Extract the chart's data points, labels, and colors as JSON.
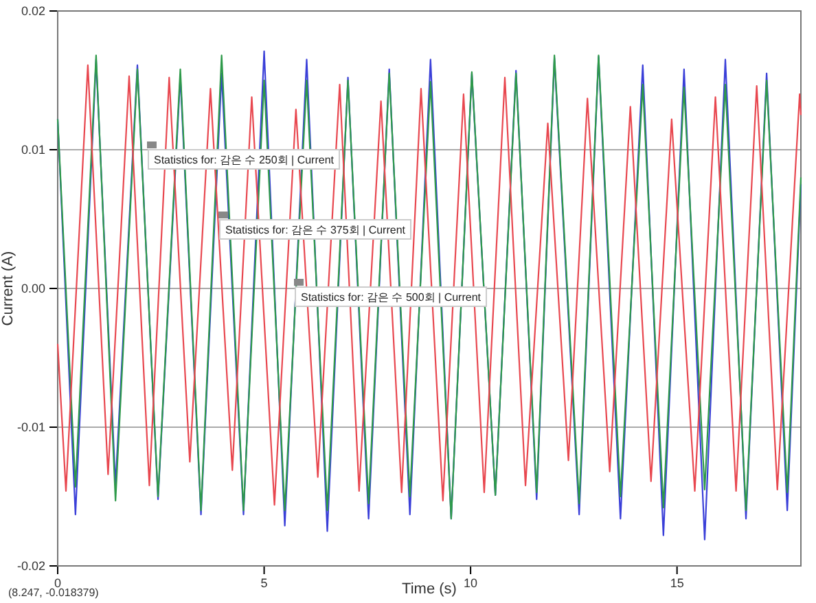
{
  "chart_data": {
    "type": "line",
    "xlabel": "Time (s)",
    "ylabel": "Current (A)",
    "xlim": [
      0,
      18
    ],
    "ylim": [
      -0.02,
      0.02
    ],
    "xticks": [
      0,
      5,
      10,
      15
    ],
    "yticks": [
      -0.02,
      -0.01,
      {
        "value": 0,
        "label": "0.00"
      },
      0.01,
      0.02
    ],
    "grid": "y",
    "marker": "none",
    "line_style": "solid",
    "annotations": [
      "Statistics for: 감은 수 250회 | Current",
      "Statistics for: 감은 수 375회 | Current",
      "Statistics for: 감은 수 500회 | Current",
      "(8.247, -0.018379)"
    ],
    "series": [
      {
        "color": "#e8474f",
        "x": [
          0,
          0.2,
          0.73,
          1.22,
          1.73,
          2.22,
          2.7,
          3.2,
          3.7,
          4.23,
          4.7,
          5.25,
          5.77,
          6.3,
          6.83,
          7.3,
          7.83,
          8.33,
          8.8,
          9.33,
          9.83,
          10.33,
          10.83,
          11.33,
          11.87,
          12.37,
          12.83,
          13.37,
          13.87,
          14.37,
          14.87,
          15.43,
          15.93,
          16.43,
          16.93,
          17.43,
          17.97,
          18
        ],
        "values": [
          -0.004,
          -0.0146,
          0.0161,
          -0.0134,
          0.0153,
          -0.0142,
          0.0152,
          -0.0125,
          0.0144,
          -0.0131,
          0.0138,
          -0.0156,
          0.0129,
          -0.0136,
          0.0147,
          -0.0146,
          0.0135,
          -0.0147,
          0.0144,
          -0.0153,
          0.014,
          -0.0147,
          0.0152,
          -0.0142,
          0.0119,
          -0.0124,
          0.0137,
          -0.0132,
          0.0131,
          -0.0139,
          0.0122,
          -0.0146,
          0.0138,
          -0.0146,
          0.0146,
          -0.0145,
          0.014,
          0.0125
        ]
      },
      {
        "color": "#2e9a4a",
        "x": [
          0,
          0.43,
          0.93,
          1.4,
          1.93,
          2.43,
          2.97,
          3.47,
          3.97,
          4.5,
          5.0,
          5.5,
          6.03,
          6.53,
          7.03,
          7.53,
          8.03,
          8.53,
          9.03,
          9.53,
          10.03,
          10.6,
          11.1,
          11.6,
          12.03,
          12.63,
          13.1,
          13.63,
          14.17,
          14.67,
          15.17,
          15.67,
          16.17,
          16.67,
          17.17,
          17.67,
          18
        ],
        "values": [
          0.0122,
          -0.0143,
          0.0168,
          -0.0153,
          0.0158,
          -0.015,
          0.0158,
          -0.016,
          0.0168,
          -0.016,
          0.015,
          -0.016,
          0.015,
          -0.016,
          0.015,
          -0.0155,
          0.0155,
          -0.015,
          0.0149,
          -0.0166,
          0.0156,
          -0.0149,
          0.0155,
          -0.0147,
          0.0168,
          -0.0155,
          0.0168,
          -0.015,
          0.0147,
          -0.0158,
          0.0145,
          -0.0145,
          0.0147,
          -0.016,
          0.015,
          -0.0147,
          0.008
        ]
      },
      {
        "color": "#3a3fd8",
        "x": [
          0,
          0.43,
          0.93,
          1.4,
          1.93,
          2.43,
          2.97,
          3.47,
          3.97,
          4.5,
          5.0,
          5.5,
          6.03,
          6.53,
          7.03,
          7.53,
          8.03,
          8.53,
          9.03,
          9.53,
          10.03,
          10.6,
          11.1,
          11.6,
          12.03,
          12.63,
          13.1,
          13.63,
          14.17,
          14.67,
          15.17,
          15.67,
          16.17,
          16.67,
          17.17,
          17.67,
          18
        ],
        "values": [
          0.0122,
          -0.0163,
          0.0165,
          -0.0142,
          0.0161,
          -0.0152,
          0.0153,
          -0.0163,
          0.0155,
          -0.0163,
          0.0171,
          -0.0171,
          0.0165,
          -0.0175,
          0.0152,
          -0.0166,
          0.0158,
          -0.0163,
          0.0165,
          -0.0166,
          0.0155,
          -0.0149,
          0.0157,
          -0.0152,
          0.0166,
          -0.0163,
          0.0167,
          -0.0166,
          0.0161,
          -0.0178,
          0.0158,
          -0.0181,
          0.0165,
          -0.0166,
          0.0155,
          -0.016,
          0.0075
        ]
      }
    ]
  }
}
